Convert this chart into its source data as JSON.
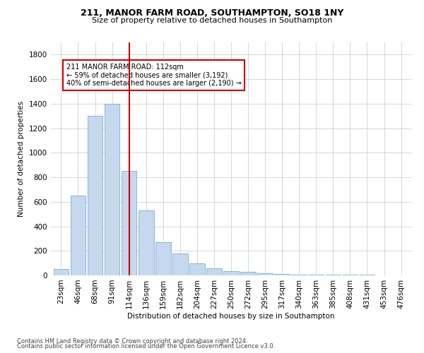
{
  "title": "211, MANOR FARM ROAD, SOUTHAMPTON, SO18 1NY",
  "subtitle": "Size of property relative to detached houses in Southampton",
  "xlabel": "Distribution of detached houses by size in Southampton",
  "ylabel": "Number of detached properties",
  "bar_color": "#c5d8ed",
  "bar_edge_color": "#7aaed6",
  "categories": [
    "23sqm",
    "46sqm",
    "68sqm",
    "91sqm",
    "114sqm",
    "136sqm",
    "159sqm",
    "182sqm",
    "204sqm",
    "227sqm",
    "250sqm",
    "272sqm",
    "295sqm",
    "317sqm",
    "340sqm",
    "363sqm",
    "385sqm",
    "408sqm",
    "431sqm",
    "453sqm",
    "476sqm"
  ],
  "values": [
    50,
    650,
    1300,
    1400,
    850,
    530,
    270,
    180,
    100,
    60,
    35,
    30,
    20,
    10,
    8,
    5,
    5,
    3,
    3,
    2,
    2
  ],
  "ylim": [
    0,
    1900
  ],
  "yticks": [
    0,
    200,
    400,
    600,
    800,
    1000,
    1200,
    1400,
    1600,
    1800
  ],
  "property_line_x": 4.0,
  "annotation_text": "211 MANOR FARM ROAD: 112sqm\n← 59% of detached houses are smaller (3,192)\n40% of semi-detached houses are larger (2,190) →",
  "annotation_box_color": "#ffffff",
  "annotation_box_edge": "#cc0000",
  "footer_line1": "Contains HM Land Registry data © Crown copyright and database right 2024.",
  "footer_line2": "Contains public sector information licensed under the Open Government Licence v3.0.",
  "background_color": "#ffffff",
  "grid_color": "#d0d0d0",
  "title_fontsize": 9,
  "subtitle_fontsize": 8,
  "axis_label_fontsize": 7.5,
  "tick_fontsize": 7.5,
  "annotation_fontsize": 7,
  "footer_fontsize": 6
}
